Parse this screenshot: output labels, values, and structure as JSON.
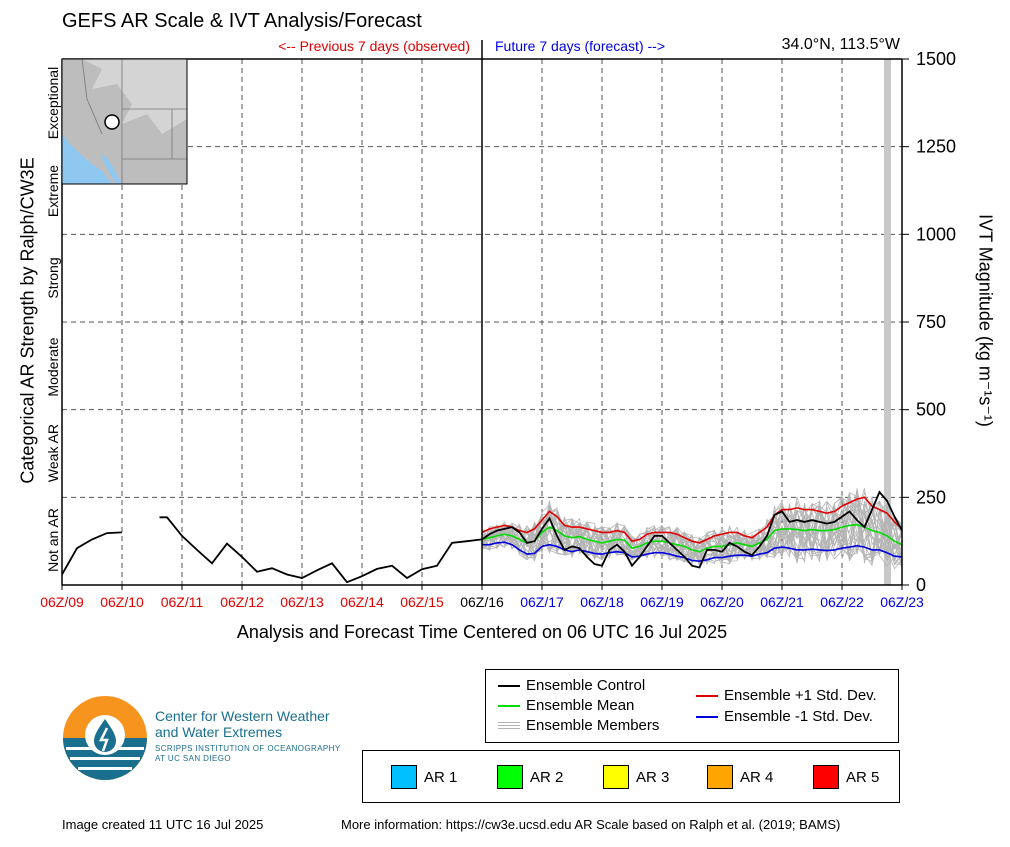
{
  "title": "GEFS AR Scale & IVT Analysis/Forecast",
  "previous_label": "<-- Previous 7 days (observed)",
  "future_label": "Future 7 days (forecast) -->",
  "location": "34.0°N, 113.5°W",
  "left_axis_title": "Categorical AR Strength by Ralph/CW3E",
  "right_axis_title": "IVT Magnitude (kg m⁻¹s⁻¹)",
  "categories": [
    "Not an AR",
    "Weak AR",
    "Moderate",
    "Strong",
    "Extreme",
    "Exceptional"
  ],
  "x_axis_title": "Analysis and Forecast Time Centered on 06 UTC 16 Jul 2025",
  "colors": {
    "observed": "#e00000",
    "forecast": "#0000e0",
    "control": "#000000",
    "mean": "#00dd00",
    "plus_std": "#e00000",
    "minus_std": "#0000e0",
    "members": "#b4b4b4",
    "ocean": "#8ec8f0",
    "logo_orange": "#f7941d",
    "logo_blue": "#1a6f8f"
  },
  "legend": {
    "control": "Ensemble Control",
    "mean": "Ensemble Mean",
    "members": "Ensemble Members",
    "plus_std": "Ensemble +1 Std. Dev.",
    "minus_std": "Ensemble -1 Std. Dev."
  },
  "ar_legend": [
    {
      "label": "AR 1",
      "color": "#00bfff"
    },
    {
      "label": "AR 2",
      "color": "#00ff00"
    },
    {
      "label": "AR 3",
      "color": "#ffff00"
    },
    {
      "label": "AR 4",
      "color": "#ffa500"
    },
    {
      "label": "AR 5",
      "color": "#ff0000"
    }
  ],
  "org": {
    "name_line1": "Center for Western Weather",
    "name_line2": "and Water Extremes",
    "sub_line1": "SCRIPPS INSTITUTION OF OCEANOGRAPHY",
    "sub_line2": "AT UC SAN DIEGO"
  },
  "footer": {
    "created": "Image created 11 UTC 16 Jul 2025",
    "more_info": "More information: https://cw3e.ucsd.edu AR Scale based on Ralph et al. (2019; BAMS)"
  },
  "chart_data": {
    "type": "line",
    "title": "GEFS AR Scale & IVT Analysis/Forecast",
    "xlabel": "Analysis and Forecast Time Centered on 06 UTC 16 Jul 2025",
    "ylabel": "IVT Magnitude (kg m⁻¹s⁻¹)",
    "xlim": [
      0,
      14
    ],
    "ylim": [
      0,
      1500
    ],
    "x_unit": "days after 06Z/09",
    "ticks": [
      {
        "label": "06Z/09",
        "x": 0,
        "period": "observed"
      },
      {
        "label": "06Z/10",
        "x": 1,
        "period": "observed"
      },
      {
        "label": "06Z/11",
        "x": 2,
        "period": "observed"
      },
      {
        "label": "06Z/12",
        "x": 3,
        "period": "observed"
      },
      {
        "label": "06Z/13",
        "x": 4,
        "period": "observed"
      },
      {
        "label": "06Z/14",
        "x": 5,
        "period": "observed"
      },
      {
        "label": "06Z/15",
        "x": 6,
        "period": "observed"
      },
      {
        "label": "06Z/16",
        "x": 7,
        "period": "now"
      },
      {
        "label": "06Z/17",
        "x": 8,
        "period": "forecast"
      },
      {
        "label": "06Z/18",
        "x": 9,
        "period": "forecast"
      },
      {
        "label": "06Z/19",
        "x": 10,
        "period": "forecast"
      },
      {
        "label": "06Z/20",
        "x": 11,
        "period": "forecast"
      },
      {
        "label": "06Z/21",
        "x": 12,
        "period": "forecast"
      },
      {
        "label": "06Z/22",
        "x": 13,
        "period": "forecast"
      },
      {
        "label": "06Z/23",
        "x": 14,
        "period": "forecast"
      }
    ],
    "y_ticks": [
      0,
      250,
      500,
      750,
      1000,
      1250,
      1500
    ],
    "category_thresholds": [
      250,
      500,
      750,
      1000,
      1250
    ],
    "shaded_x": 13.75,
    "grid": true,
    "series": [
      {
        "name": "Ensemble Control",
        "segments": [
          {
            "x": [
              0,
              0.25,
              0.5,
              0.75,
              1.0
            ],
            "y": [
              30,
              105,
              130,
              148,
              150
            ]
          },
          {
            "x": [
              1.625,
              1.75,
              2.0,
              2.25,
              2.5,
              2.75,
              3.0,
              3.25,
              3.5,
              3.75,
              4.0,
              4.25,
              4.5,
              4.75,
              5.0,
              5.25,
              5.5,
              5.75,
              6.0,
              6.25,
              6.5,
              6.75,
              7.0
            ],
            "y": [
              193,
              193,
              140,
              100,
              62,
              118,
              80,
              38,
              48,
              30,
              20,
              42,
              62,
              8,
              25,
              46,
              55,
              20,
              45,
              55,
              120,
              125,
              130
            ]
          },
          {
            "x": [
              7.0,
              7.125,
              7.25,
              7.375,
              7.5,
              7.625,
              7.75,
              7.875,
              8.0,
              8.125,
              8.25,
              8.375,
              8.5,
              8.625,
              8.75,
              8.875,
              9.0,
              9.125,
              9.25,
              9.375,
              9.5,
              9.625,
              9.75,
              9.875,
              10.0,
              10.125,
              10.25,
              10.375,
              10.5,
              10.625,
              10.75,
              10.875,
              11.0,
              11.125,
              11.25,
              11.375,
              11.5,
              11.625,
              11.75,
              11.875,
              12.0,
              12.125,
              12.25,
              12.375,
              12.5,
              12.625,
              12.75,
              12.875,
              13.0,
              13.125,
              13.25,
              13.375,
              13.5,
              13.625,
              13.75,
              13.875,
              14.0
            ],
            "y": [
              130,
              145,
              155,
              160,
              165,
              150,
              120,
              125,
              160,
              190,
              140,
              100,
              110,
              105,
              80,
              60,
              55,
              100,
              115,
              95,
              55,
              80,
              110,
              140,
              140,
              120,
              100,
              80,
              55,
              50,
              100,
              100,
              95,
              120,
              110,
              95,
              85,
              110,
              140,
              200,
              210,
              180,
              185,
              180,
              185,
              180,
              175,
              180,
              195,
              210,
              185,
              165,
              215,
              265,
              240,
              195,
              155
            ]
          }
        ]
      },
      {
        "name": "Ensemble Mean",
        "x": [
          7.0,
          7.125,
          7.25,
          7.375,
          7.5,
          7.625,
          7.75,
          7.875,
          8.0,
          8.125,
          8.25,
          8.375,
          8.5,
          8.625,
          8.75,
          8.875,
          9.0,
          9.125,
          9.25,
          9.375,
          9.5,
          9.625,
          9.75,
          9.875,
          10.0,
          10.125,
          10.25,
          10.375,
          10.5,
          10.625,
          10.75,
          10.875,
          11.0,
          11.125,
          11.25,
          11.375,
          11.5,
          11.625,
          11.75,
          11.875,
          12.0,
          12.125,
          12.25,
          12.375,
          12.5,
          12.625,
          12.75,
          12.875,
          13.0,
          13.125,
          13.25,
          13.375,
          13.5,
          13.625,
          13.75,
          13.875,
          14.0
        ],
        "y": [
          130,
          135,
          140,
          145,
          140,
          130,
          120,
          125,
          150,
          165,
          155,
          140,
          135,
          138,
          130,
          125,
          120,
          125,
          130,
          128,
          105,
          110,
          120,
          125,
          125,
          120,
          115,
          110,
          100,
          95,
          105,
          110,
          110,
          115,
          120,
          115,
          110,
          120,
          130,
          155,
          160,
          160,
          158,
          155,
          158,
          155,
          155,
          158,
          165,
          170,
          172,
          165,
          155,
          150,
          140,
          125,
          115
        ]
      },
      {
        "name": "Ensemble +1 Std. Dev.",
        "x": [
          7.0,
          7.125,
          7.25,
          7.375,
          7.5,
          7.625,
          7.75,
          7.875,
          8.0,
          8.125,
          8.25,
          8.375,
          8.5,
          8.625,
          8.75,
          8.875,
          9.0,
          9.125,
          9.25,
          9.375,
          9.5,
          9.625,
          9.75,
          9.875,
          10.0,
          10.125,
          10.25,
          10.375,
          10.5,
          10.625,
          10.75,
          10.875,
          11.0,
          11.125,
          11.25,
          11.375,
          11.5,
          11.625,
          11.75,
          11.875,
          12.0,
          12.125,
          12.25,
          12.375,
          12.5,
          12.625,
          12.75,
          12.875,
          13.0,
          13.125,
          13.25,
          13.375,
          13.5,
          13.625,
          13.75,
          13.875,
          14.0
        ],
        "y": [
          150,
          160,
          165,
          170,
          165,
          155,
          150,
          160,
          185,
          210,
          195,
          170,
          165,
          165,
          160,
          155,
          150,
          150,
          155,
          150,
          125,
          130,
          145,
          150,
          150,
          150,
          145,
          135,
          125,
          120,
          130,
          140,
          145,
          150,
          150,
          140,
          135,
          150,
          165,
          200,
          215,
          215,
          220,
          215,
          215,
          210,
          205,
          210,
          225,
          235,
          245,
          250,
          225,
          215,
          205,
          180,
          160
        ]
      },
      {
        "name": "Ensemble -1 Std. Dev.",
        "x": [
          7.0,
          7.125,
          7.25,
          7.375,
          7.5,
          7.625,
          7.75,
          7.875,
          8.0,
          8.125,
          8.25,
          8.375,
          8.5,
          8.625,
          8.75,
          8.875,
          9.0,
          9.125,
          9.25,
          9.375,
          9.5,
          9.625,
          9.75,
          9.875,
          10.0,
          10.125,
          10.25,
          10.375,
          10.5,
          10.625,
          10.75,
          10.875,
          11.0,
          11.125,
          11.25,
          11.375,
          11.5,
          11.625,
          11.75,
          11.875,
          12.0,
          12.125,
          12.25,
          12.375,
          12.5,
          12.625,
          12.75,
          12.875,
          13.0,
          13.125,
          13.25,
          13.375,
          13.5,
          13.625,
          13.75,
          13.875,
          14.0
        ],
        "y": [
          115,
          115,
          120,
          122,
          115,
          100,
          88,
          90,
          110,
          115,
          110,
          100,
          95,
          100,
          95,
          90,
          88,
          92,
          95,
          92,
          80,
          82,
          88,
          92,
          92,
          88,
          82,
          78,
          70,
          68,
          72,
          78,
          78,
          82,
          85,
          85,
          82,
          88,
          92,
          105,
          108,
          105,
          100,
          100,
          102,
          100,
          98,
          100,
          105,
          108,
          112,
          108,
          100,
          100,
          92,
          82,
          80
        ]
      }
    ]
  }
}
